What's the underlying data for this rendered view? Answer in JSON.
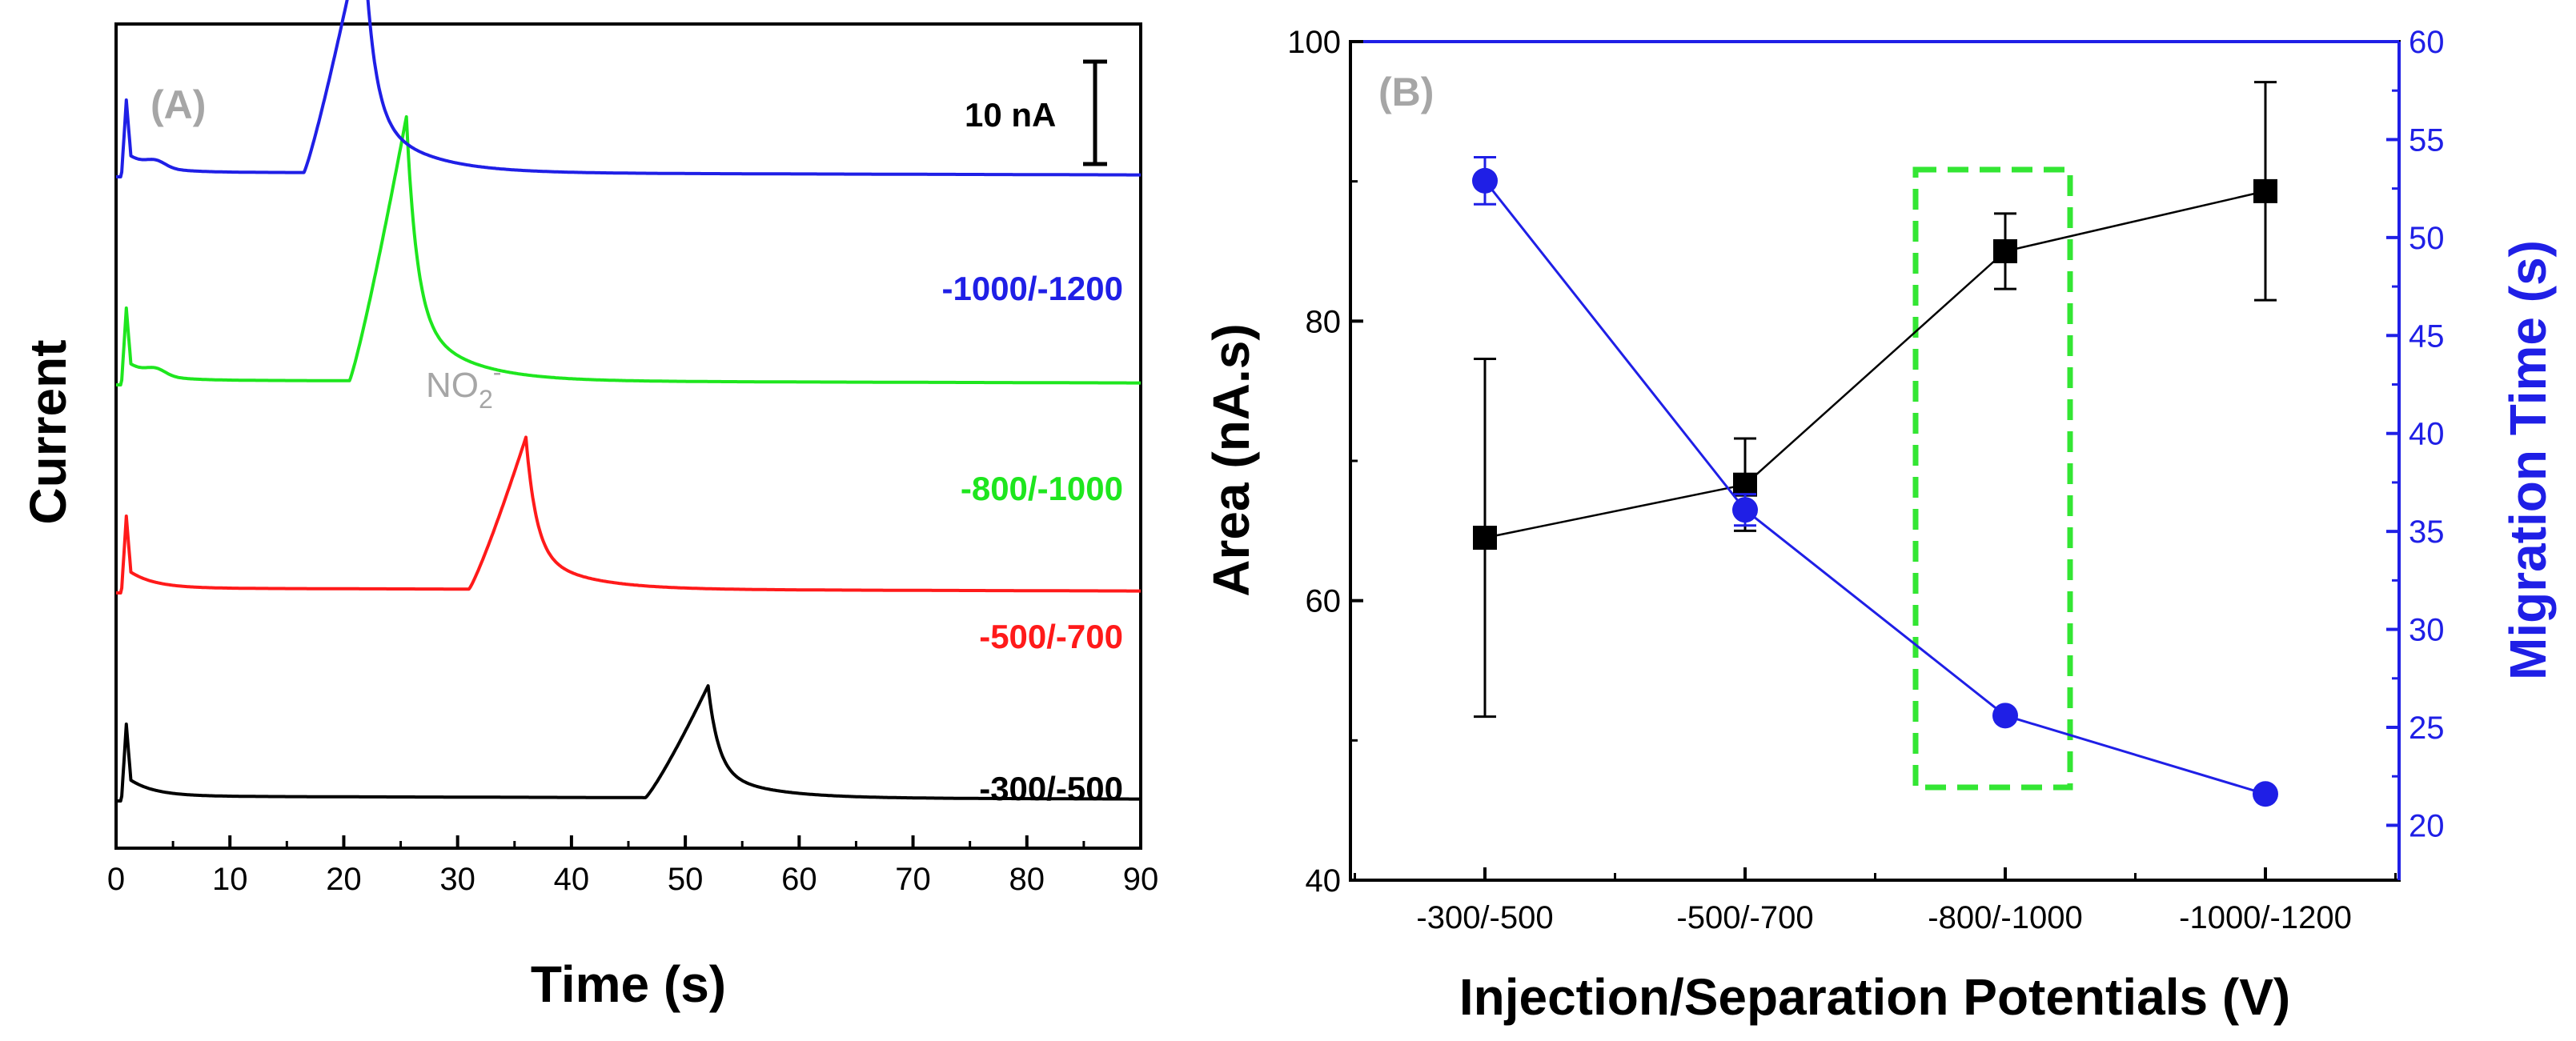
{
  "chart_data": [
    {
      "type": "line",
      "panel_label": "(A)",
      "xlabel": "Time (s)",
      "ylabel": "Current",
      "xlim": [
        0,
        90
      ],
      "x_ticks": [
        "0",
        "10",
        "20",
        "30",
        "40",
        "50",
        "60",
        "70",
        "80",
        "90"
      ],
      "scale_bar_label": "10 nA",
      "annotation": {
        "base": "NO",
        "sub": "2",
        "sup": "-"
      },
      "series": [
        {
          "name": "-300/-500",
          "color": "#000000",
          "peak_time": 52,
          "peak_start": 46.5,
          "peak_height": 14,
          "baseline": 0
        },
        {
          "name": "-500/-700",
          "color": "#ff1a1a",
          "peak_time": 36,
          "peak_start": 31,
          "peak_height": 19,
          "baseline": 26
        },
        {
          "name": "-800/-1000",
          "color": "#1ee61e",
          "peak_time": 25.5,
          "peak_start": 20.5,
          "peak_height": 33,
          "baseline": 52
        },
        {
          "name": "-1000/-1200",
          "color": "#1f1fe6",
          "peak_time": 21.7,
          "peak_start": 16.5,
          "peak_height": 31,
          "baseline": 78
        }
      ]
    },
    {
      "type": "line",
      "panel_label": "(B)",
      "xlabel": "Injection/Separation Potentials (V)",
      "ylabel": "Area (nA.s)",
      "y2label": "Migration Time (s)",
      "categories": [
        "-300/-500",
        "-500/-700",
        "-800/-1000",
        "-1000/-1200"
      ],
      "ylim": [
        40,
        100
      ],
      "y_ticks": [
        "40",
        "60",
        "80",
        "100"
      ],
      "y2lim": [
        17.2,
        60
      ],
      "y2_ticks": [
        "20",
        "25",
        "30",
        "35",
        "40",
        "45",
        "50",
        "55",
        "60"
      ],
      "series": [
        {
          "name": "Area (nA.s)",
          "axis": "left",
          "color": "#000000",
          "marker": "square",
          "values": [
            64.5,
            68.3,
            85,
            89.3
          ],
          "error": [
            12.8,
            3.3,
            2.7,
            7.8
          ]
        },
        {
          "name": "Migration Time (s)",
          "axis": "right",
          "color": "#1f1fe6",
          "marker": "circle",
          "values": [
            52.9,
            36.1,
            25.6,
            21.6
          ],
          "error": [
            1.2,
            0.8,
            0,
            0
          ]
        }
      ],
      "highlight_category": "-800/-1000",
      "highlight_color": "#33e633"
    }
  ]
}
